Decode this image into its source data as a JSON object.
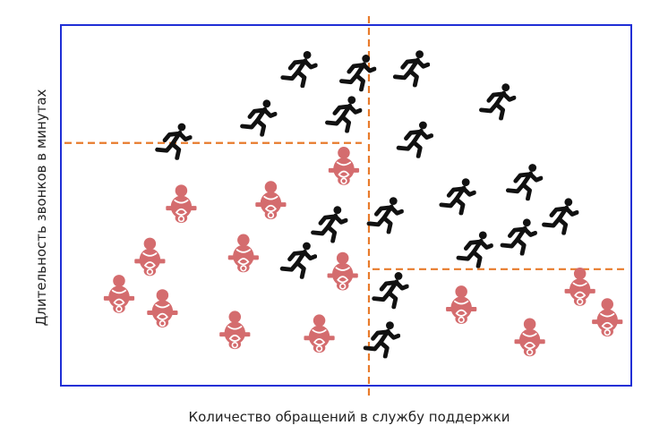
{
  "chart_data": {
    "type": "scatter",
    "xlabel": "Количество обращений в службу поддержки",
    "ylabel": "Длительность звонков в минутах",
    "xlim": [
      0,
      100
    ],
    "ylim": [
      0,
      100
    ],
    "axis_color": "#1f2fd6",
    "divider_color": "#e87b2c",
    "series": [
      {
        "icon": "runner-icon",
        "color": "#111111",
        "points": [
          {
            "x": 19.7,
            "y": 67.8
          },
          {
            "x": 34.6,
            "y": 74.3
          },
          {
            "x": 41.7,
            "y": 87.8
          },
          {
            "x": 49.5,
            "y": 75.3
          },
          {
            "x": 52.0,
            "y": 86.8
          },
          {
            "x": 61.4,
            "y": 88.0
          },
          {
            "x": 76.5,
            "y": 78.8
          },
          {
            "x": 62.0,
            "y": 68.3
          },
          {
            "x": 47.0,
            "y": 44.8
          },
          {
            "x": 56.8,
            "y": 47.3
          },
          {
            "x": 69.5,
            "y": 52.5
          },
          {
            "x": 81.2,
            "y": 56.5
          },
          {
            "x": 87.5,
            "y": 47.0
          },
          {
            "x": 80.2,
            "y": 41.3
          },
          {
            "x": 72.5,
            "y": 37.8
          },
          {
            "x": 41.6,
            "y": 34.8
          },
          {
            "x": 57.7,
            "y": 26.5
          },
          {
            "x": 56.2,
            "y": 12.8
          }
        ]
      },
      {
        "icon": "baby-icon",
        "color": "#d46c6e",
        "points": [
          {
            "x": 21.1,
            "y": 50.5
          },
          {
            "x": 36.8,
            "y": 51.5
          },
          {
            "x": 49.6,
            "y": 61.0
          },
          {
            "x": 15.6,
            "y": 35.8
          },
          {
            "x": 32.0,
            "y": 36.8
          },
          {
            "x": 49.4,
            "y": 31.8
          },
          {
            "x": 10.2,
            "y": 25.5
          },
          {
            "x": 17.8,
            "y": 21.5
          },
          {
            "x": 30.5,
            "y": 15.5
          },
          {
            "x": 45.3,
            "y": 14.5
          },
          {
            "x": 70.2,
            "y": 22.5
          },
          {
            "x": 82.2,
            "y": 13.5
          },
          {
            "x": 91.0,
            "y": 27.5
          },
          {
            "x": 95.8,
            "y": 19.0
          }
        ]
      }
    ],
    "dividers": [
      {
        "orientation": "vertical",
        "x": 54.0,
        "y_from": 100,
        "y_to": 0
      },
      {
        "orientation": "horizontal",
        "y": 67.3,
        "x_from": 0,
        "x_to": 54.0
      },
      {
        "orientation": "horizontal",
        "y": 32.3,
        "x_from": 54.0,
        "x_to": 100
      }
    ]
  }
}
